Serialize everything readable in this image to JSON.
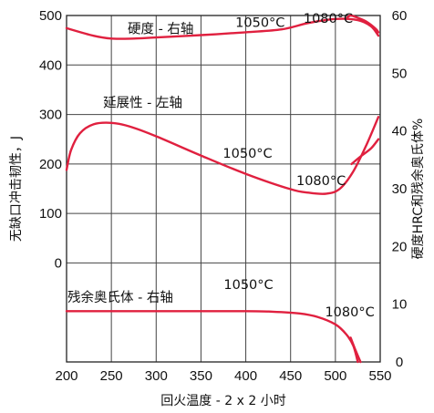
{
  "chart_data": {
    "type": "line",
    "xlabel": "回火温度 - 2 x 2 小时",
    "ylabel_left": "无缺口冲击韧性，J",
    "ylabel_right": "硬度HRC和残余奥氏体%",
    "x_ticks": [
      200,
      250,
      300,
      350,
      400,
      450,
      500,
      550
    ],
    "y_left_ticks": [
      500,
      400,
      300,
      200,
      100,
      0
    ],
    "y_right_ticks": [
      60,
      50,
      40,
      30,
      20,
      10,
      0
    ],
    "xlim": [
      200,
      550
    ],
    "ylim_left": [
      -200,
      500
    ],
    "ylim_right": [
      0,
      60
    ],
    "grid": true,
    "annotations": [
      {
        "text": "硬度 - 右轴",
        "x": 305,
        "y_right": 57.7
      },
      {
        "text": "1050°C",
        "x": 416,
        "y_right": 58.8
      },
      {
        "text": "1080°C",
        "x": 492,
        "y_right": 59.5
      },
      {
        "text": "延展性 - 左轴",
        "x": 285,
        "y_left": 324
      },
      {
        "text": "1050°C",
        "x": 402,
        "y_left": 222
      },
      {
        "text": "1080°C",
        "x": 484,
        "y_left": 167
      },
      {
        "text": "残余奥氏体 - 右轴",
        "x": 260,
        "y_right": 11.2
      },
      {
        "text": "1050°C",
        "x": 403,
        "y_right": 13.4
      },
      {
        "text": "1080°C",
        "x": 516,
        "y_right": 8.7
      }
    ],
    "series": [
      {
        "axis": "right",
        "x": [
          200,
          230,
          250,
          275,
          300,
          350,
          400,
          440,
          470,
          500,
          525,
          540,
          548
        ],
        "y": [
          57.8,
          56.5,
          56.0,
          56.0,
          56.2,
          56.6,
          57.1,
          57.6,
          58.7,
          59.4,
          59.2,
          58.1,
          56.5
        ]
      },
      {
        "axis": "right",
        "x": [
          513,
          517,
          525,
          535,
          545,
          548
        ],
        "y": [
          59.6,
          60.0,
          59.6,
          58.9,
          57.7,
          57.1
        ]
      },
      {
        "axis": "left",
        "x": [
          200,
          205,
          215,
          230,
          250,
          270,
          300,
          350,
          400,
          450,
          470,
          490,
          505,
          520,
          535,
          548
        ],
        "y": [
          188,
          228,
          262,
          280,
          283,
          276,
          256,
          217,
          180,
          149,
          142,
          140,
          150,
          185,
          240,
          295
        ]
      },
      {
        "axis": "left",
        "x": [
          518,
          528,
          540,
          548
        ],
        "y": [
          200,
          215,
          232,
          250
        ]
      },
      {
        "axis": "right",
        "x": [
          200,
          300,
          400,
          430,
          460,
          480,
          500,
          512,
          520,
          525
        ],
        "y": [
          8.8,
          8.8,
          8.8,
          8.7,
          8.4,
          7.8,
          6.5,
          4.8,
          2.8,
          0
        ]
      },
      {
        "axis": "right",
        "x": [
          517,
          522,
          528
        ],
        "y": [
          4.2,
          2.2,
          0
        ]
      }
    ]
  }
}
